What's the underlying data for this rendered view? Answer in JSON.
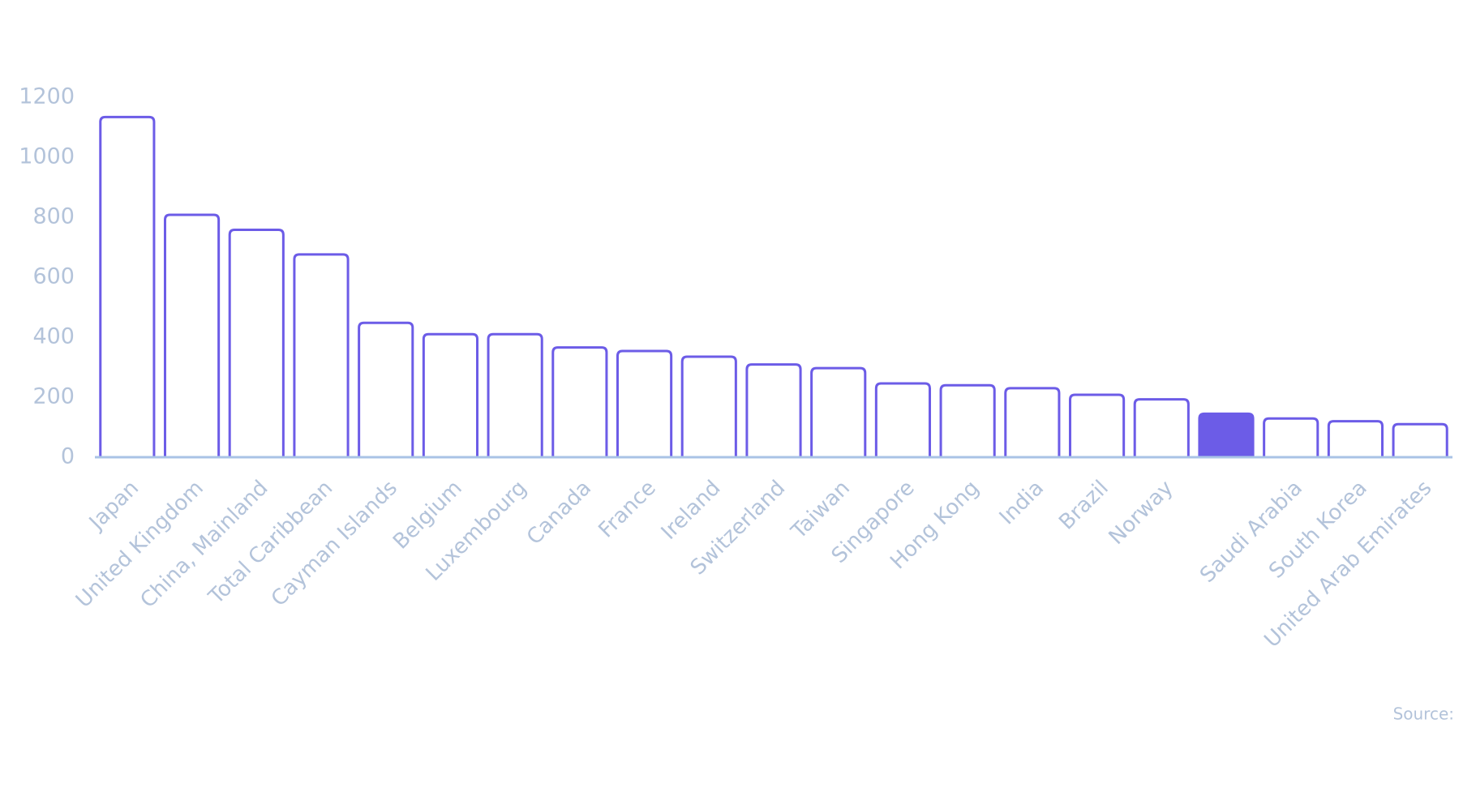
{
  "chart_data": {
    "type": "bar",
    "categories": [
      "Japan",
      "United Kingdom",
      "China, Mainland",
      "Total Caribbean",
      "Cayman Islands",
      "Belgium",
      "Luxembourg",
      "Canada",
      "France",
      "Ireland",
      "Switzerland",
      "Taiwan",
      "Singapore",
      "Hong Kong",
      "India",
      "Brazil",
      "Norway",
      null,
      "Saudi Arabia",
      "South Korea",
      "United Arab Emirates"
    ],
    "values": [
      1134,
      808,
      758,
      676,
      448,
      410,
      410,
      366,
      354,
      335,
      309,
      297,
      246,
      240,
      230,
      208,
      193,
      145,
      129,
      120,
      110
    ],
    "color": "#6c5ce7",
    "fills": [
      "#ffffff",
      "#ffffff",
      "#ffffff",
      "#ffffff",
      "#ffffff",
      "#ffffff",
      "#ffffff",
      "#ffffff",
      "#ffffff",
      "#ffffff",
      "#ffffff",
      "#ffffff",
      "#ffffff",
      "#ffffff",
      "#ffffff",
      "#ffffff",
      "#ffffff",
      "#6c5ce7",
      "#ffffff",
      "#ffffff",
      "#ffffff"
    ],
    "ylim": [
      0,
      1200
    ],
    "yticks": [
      0,
      200,
      400,
      600,
      800,
      1000,
      1200
    ],
    "grid": false,
    "source": "Source:"
  }
}
